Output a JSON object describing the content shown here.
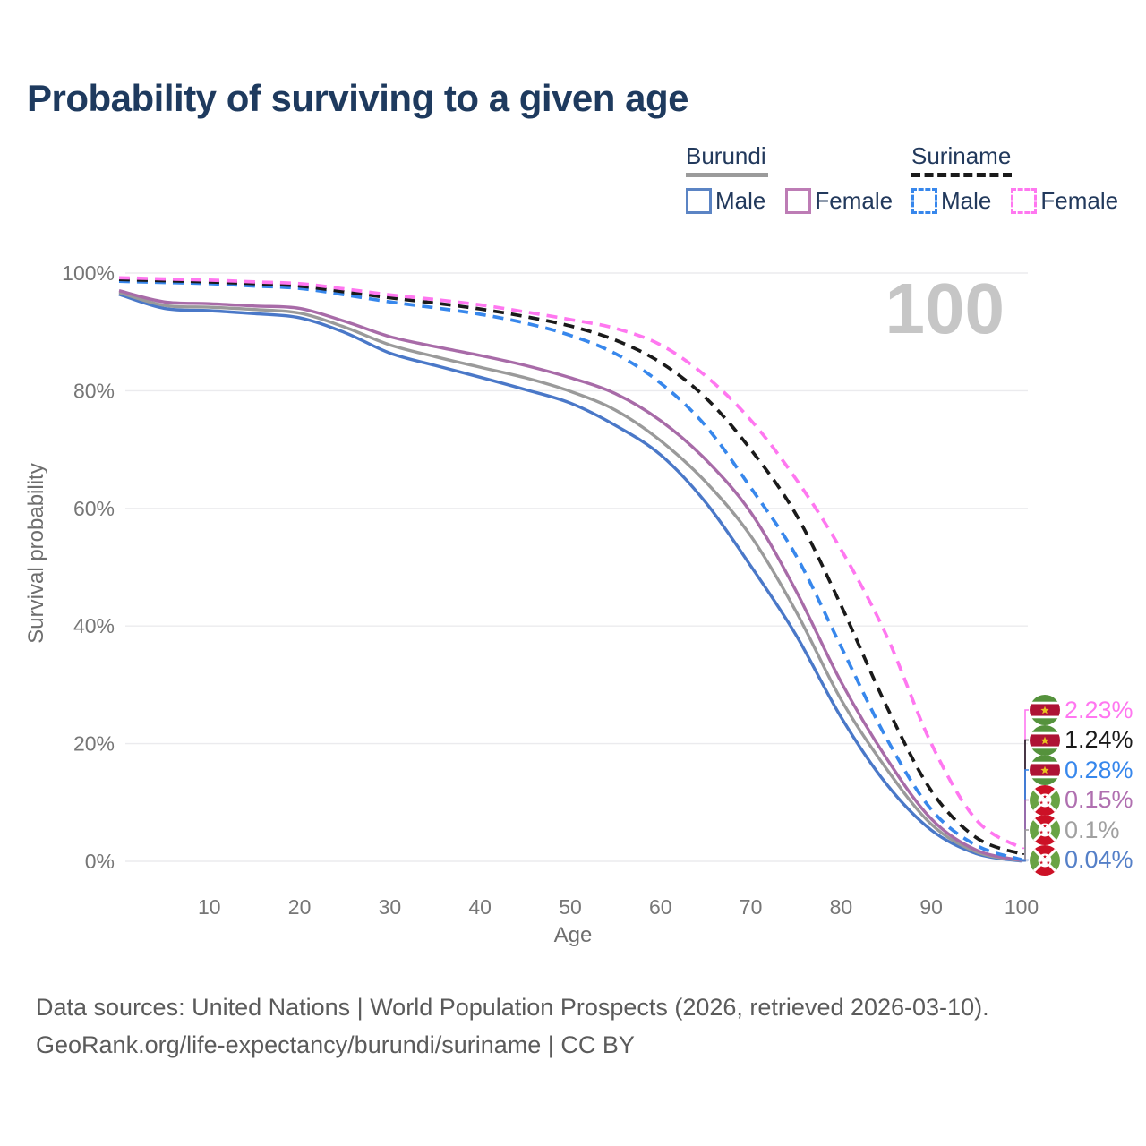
{
  "title": "Probability of surviving to a given age",
  "watermark": "100",
  "legend": {
    "groups": [
      {
        "label": "Burundi",
        "line": {
          "color": "#9b9b9b",
          "dash": false
        },
        "items": [
          {
            "label": "Male",
            "color": "#5b84c4",
            "dash": false
          },
          {
            "label": "Female",
            "color": "#bd7cb5",
            "dash": false
          }
        ]
      },
      {
        "label": "Suriname",
        "line": {
          "color": "#1a1a1a",
          "dash": true
        },
        "items": [
          {
            "label": "Male",
            "color": "#3787ec",
            "dash": true
          },
          {
            "label": "Female",
            "color": "#ff77f0",
            "dash": true
          }
        ]
      }
    ]
  },
  "chart_data": {
    "type": "line",
    "title": "Probability of surviving to a given age",
    "xlabel": "Age",
    "ylabel": "Survival probability",
    "xlim": [
      0,
      100
    ],
    "ylim": [
      0,
      100
    ],
    "grid": true,
    "x": [
      0,
      5,
      10,
      15,
      20,
      25,
      30,
      35,
      40,
      45,
      50,
      55,
      60,
      65,
      70,
      75,
      80,
      85,
      90,
      95,
      100
    ],
    "axes": {
      "x": {
        "label": "Age",
        "ticks": [
          10,
          20,
          30,
          40,
          50,
          60,
          70,
          80,
          90,
          100
        ]
      },
      "y": {
        "label": "Survival probability",
        "tick_values": [
          0,
          20,
          40,
          60,
          80,
          100
        ],
        "ticks": [
          "0%",
          "20%",
          "40%",
          "60%",
          "80%",
          "100%"
        ]
      }
    },
    "series": [
      {
        "name": "Suriname Female",
        "country": "Suriname",
        "flag": "suriname-flag-icon",
        "color": "#ff77f0",
        "label_color": "#ff77f0",
        "dash": true,
        "end_label": "2.23%",
        "values": [
          99.2,
          99.0,
          98.8,
          98.5,
          98.2,
          97.3,
          96.3,
          95.5,
          94.6,
          93.4,
          92.1,
          90.6,
          87.8,
          82.5,
          75.0,
          65.0,
          53.0,
          38.5,
          20.0,
          7.0,
          2.23
        ]
      },
      {
        "name": "Suriname Both sexes",
        "country": "Suriname",
        "flag": "suriname-flag-icon",
        "color": "#1a1a1a",
        "label_color": "#1a1a1a",
        "dash": true,
        "end_label": "1.24%",
        "values": [
          98.9,
          98.7,
          98.5,
          98.2,
          97.8,
          96.8,
          95.8,
          94.9,
          93.9,
          92.6,
          91.0,
          88.6,
          84.8,
          78.8,
          70.0,
          59.0,
          43.5,
          26.5,
          12.0,
          4.0,
          1.24
        ]
      },
      {
        "name": "Suriname Male",
        "country": "Suriname",
        "flag": "suriname-flag-icon",
        "color": "#3787ec",
        "label_color": "#3787ec",
        "dash": true,
        "end_label": "0.28%",
        "values": [
          98.6,
          98.4,
          98.2,
          97.8,
          97.4,
          96.3,
          95.1,
          94.1,
          93.0,
          91.5,
          89.4,
          86.3,
          81.3,
          74.0,
          63.5,
          52.0,
          36.5,
          21.0,
          8.8,
          2.7,
          0.28
        ]
      },
      {
        "name": "Burundi Female",
        "country": "Burundi",
        "flag": "burundi-flag-icon",
        "color": "#a86ba8",
        "label_color": "#b070b0",
        "dash": false,
        "end_label": "0.15%",
        "values": [
          97.0,
          95.1,
          94.8,
          94.4,
          94.0,
          91.8,
          89.2,
          87.5,
          86.0,
          84.3,
          82.2,
          79.5,
          74.9,
          68.3,
          59.3,
          46.0,
          30.5,
          17.6,
          7.2,
          1.9,
          0.15
        ]
      },
      {
        "name": "Burundi Both sexes",
        "country": "Burundi",
        "flag": "burundi-flag-icon",
        "color": "#9a9a9a",
        "label_color": "#a0a0a0",
        "dash": false,
        "end_label": "0.1%",
        "values": [
          96.7,
          94.5,
          94.2,
          93.8,
          93.2,
          90.8,
          87.8,
          85.8,
          84.0,
          82.2,
          79.9,
          76.7,
          71.5,
          64.5,
          55.3,
          42.5,
          27.5,
          15.8,
          6.3,
          1.6,
          0.1
        ]
      },
      {
        "name": "Burundi Male",
        "country": "Burundi",
        "flag": "burundi-flag-icon",
        "color": "#4a78c8",
        "label_color": "#5580c8",
        "dash": false,
        "end_label": "0.04%",
        "values": [
          96.4,
          94.0,
          93.6,
          93.1,
          92.4,
          89.9,
          86.4,
          84.3,
          82.3,
          80.2,
          77.9,
          74.1,
          69.1,
          61.0,
          50.2,
          38.5,
          24.5,
          13.2,
          5.3,
          1.3,
          0.04
        ]
      }
    ]
  },
  "footer": {
    "line1": "Data sources: United Nations | World Population Prospects (2026, retrieved 2026-03-10).",
    "line2": "GeoRank.org/life-expectancy/burundi/suriname | CC BY"
  }
}
